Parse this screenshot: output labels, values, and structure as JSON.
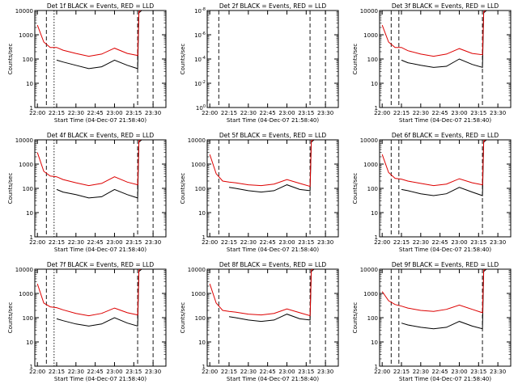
{
  "chart_data": [
    {
      "type": "line",
      "title": "Det 1f BLACK = Events, RED = LLD",
      "xlabel": "Start Time (04-Dec-07 21:58:40)",
      "ylabel": "Counts/sec",
      "x_ticks": [
        "22:00",
        "22:15",
        "22:30",
        "22:45",
        "23:00",
        "23:15",
        "23:30"
      ],
      "y_ticks": [
        "1",
        "10",
        "100",
        "1000",
        "10000"
      ],
      "y_scale": "log",
      "ylim": [
        1,
        10000
      ],
      "x": [
        "22:00",
        "22:05",
        "22:10",
        "22:15",
        "22:20",
        "22:30",
        "22:40",
        "22:50",
        "23:00",
        "23:10",
        "23:18",
        "23:19",
        "23:22",
        "23:35"
      ],
      "series": [
        {
          "name": "Events",
          "color": "#000000",
          "values": [
            null,
            null,
            null,
            90,
            75,
            55,
            40,
            48,
            90,
            55,
            40,
            8000,
            11000,
            11000
          ]
        },
        {
          "name": "LLD",
          "color": "#dd0000",
          "values": [
            2500,
            500,
            300,
            300,
            230,
            170,
            130,
            160,
            280,
            170,
            140,
            9000,
            12000,
            12000
          ]
        }
      ],
      "markers": [
        "22:07",
        "22:13",
        "23:18",
        "23:30"
      ]
    },
    {
      "type": "line",
      "title": "Det 2f BLACK = Events, RED = LLD",
      "xlabel": "Start Time (04-Dec-07 21:58:40)",
      "ylabel": "Counts/sec",
      "x_ticks": [
        "22:00",
        "22:15",
        "22:30",
        "22:45",
        "23:00",
        "23:15",
        "23:30"
      ],
      "y_ticks": [
        "10^0",
        "10^-2",
        "10^-4",
        "10^-6",
        "10^-8"
      ],
      "y_scale": "log",
      "ylim": [
        1e-08,
        1
      ],
      "x": [],
      "series": [],
      "markers": [
        "22:07",
        "23:18",
        "23:30"
      ]
    },
    {
      "type": "line",
      "title": "Det 3f BLACK = Events, RED = LLD",
      "xlabel": "Start Time (04-Dec-07 21:58:40)",
      "ylabel": "Counts/sec",
      "x_ticks": [
        "22:00",
        "22:15",
        "22:30",
        "22:45",
        "23:00",
        "23:15",
        "23:30"
      ],
      "y_ticks": [
        "1",
        "10",
        "100",
        "1000",
        "10000"
      ],
      "y_scale": "log",
      "ylim": [
        1,
        10000
      ],
      "x": [
        "22:00",
        "22:05",
        "22:10",
        "22:15",
        "22:20",
        "22:30",
        "22:40",
        "22:50",
        "23:00",
        "23:10",
        "23:18",
        "23:19",
        "23:22"
      ],
      "series": [
        {
          "name": "Events",
          "color": "#000000",
          "values": [
            null,
            null,
            null,
            90,
            70,
            55,
            45,
            50,
            100,
            60,
            45,
            8000,
            11000
          ]
        },
        {
          "name": "LLD",
          "color": "#dd0000",
          "values": [
            2500,
            500,
            300,
            300,
            220,
            160,
            130,
            160,
            270,
            170,
            150,
            9000,
            12000
          ]
        }
      ],
      "markers": [
        "22:07",
        "22:13",
        "23:18"
      ]
    },
    {
      "type": "line",
      "title": "Det 4f BLACK = Events, RED = LLD",
      "xlabel": "Start Time (04-Dec-07 21:58:40)",
      "ylabel": "Counts/sec",
      "x_ticks": [
        "22:00",
        "22:15",
        "22:30",
        "22:45",
        "23:00",
        "23:15",
        "23:30"
      ],
      "y_ticks": [
        "1",
        "10",
        "100",
        "1000",
        "10000"
      ],
      "y_scale": "log",
      "ylim": [
        1,
        10000
      ],
      "x": [
        "22:00",
        "22:05",
        "22:10",
        "22:15",
        "22:20",
        "22:30",
        "22:40",
        "22:50",
        "23:00",
        "23:10",
        "23:18",
        "23:19",
        "23:22",
        "23:35"
      ],
      "series": [
        {
          "name": "Events",
          "color": "#000000",
          "values": [
            null,
            null,
            null,
            90,
            70,
            55,
            40,
            45,
            90,
            55,
            40,
            8000,
            11000,
            11000
          ]
        },
        {
          "name": "LLD",
          "color": "#dd0000",
          "values": [
            3000,
            500,
            320,
            300,
            230,
            170,
            130,
            160,
            300,
            180,
            140,
            9000,
            12000,
            12000
          ]
        }
      ],
      "markers": [
        "22:07",
        "22:13",
        "23:18",
        "23:30"
      ]
    },
    {
      "type": "line",
      "title": "Det 5f BLACK = Events, RED = LLD",
      "xlabel": "Start Time (04-Dec-07 21:58:40)",
      "ylabel": "Counts/sec",
      "x_ticks": [
        "22:00",
        "22:15",
        "22:30",
        "22:45",
        "23:00",
        "23:15",
        "23:30"
      ],
      "y_ticks": [
        "1",
        "10",
        "100",
        "1000",
        "10000"
      ],
      "y_scale": "log",
      "ylim": [
        1,
        10000
      ],
      "x": [
        "22:00",
        "22:05",
        "22:10",
        "22:15",
        "22:20",
        "22:30",
        "22:40",
        "22:50",
        "23:00",
        "23:10",
        "23:18",
        "23:19",
        "23:22"
      ],
      "series": [
        {
          "name": "Events",
          "color": "#000000",
          "values": [
            null,
            null,
            null,
            110,
            100,
            80,
            70,
            80,
            140,
            90,
            80,
            8000,
            11000
          ]
        },
        {
          "name": "LLD",
          "color": "#dd0000",
          "values": [
            2500,
            400,
            200,
            180,
            170,
            140,
            130,
            150,
            230,
            160,
            120,
            9000,
            12000
          ]
        }
      ],
      "markers": [
        "22:07",
        "23:18",
        "23:30"
      ]
    },
    {
      "type": "line",
      "title": "Det 6f BLACK = Events, RED = LLD",
      "xlabel": "Start Time (04-Dec-07 21:58:40)",
      "ylabel": "Counts/sec",
      "x_ticks": [
        "22:00",
        "22:15",
        "22:30",
        "22:45",
        "23:00",
        "23:15",
        "23:30"
      ],
      "y_ticks": [
        "1",
        "10",
        "100",
        "1000",
        "10000"
      ],
      "y_scale": "log",
      "ylim": [
        1,
        10000
      ],
      "x": [
        "22:00",
        "22:05",
        "22:10",
        "22:15",
        "22:20",
        "22:30",
        "22:40",
        "22:50",
        "23:00",
        "23:10",
        "23:18",
        "23:19",
        "23:22"
      ],
      "series": [
        {
          "name": "Events",
          "color": "#000000",
          "values": [
            null,
            null,
            null,
            90,
            80,
            60,
            50,
            60,
            110,
            70,
            50,
            8000,
            11000
          ]
        },
        {
          "name": "LLD",
          "color": "#dd0000",
          "values": [
            2500,
            450,
            260,
            240,
            200,
            160,
            130,
            150,
            250,
            170,
            140,
            9000,
            12000
          ]
        }
      ],
      "markers": [
        "22:07",
        "22:13",
        "23:18"
      ]
    },
    {
      "type": "line",
      "title": "Det 7f BLACK = Events, RED = LLD",
      "xlabel": "Start Time (04-Dec-07 21:58:40)",
      "ylabel": "Counts/sec",
      "x_ticks": [
        "22:00",
        "22:15",
        "22:30",
        "22:45",
        "23:00",
        "23:15",
        "23:30"
      ],
      "y_ticks": [
        "1",
        "10",
        "100",
        "1000",
        "10000"
      ],
      "y_scale": "log",
      "ylim": [
        1,
        10000
      ],
      "x": [
        "22:00",
        "22:05",
        "22:10",
        "22:15",
        "22:20",
        "22:30",
        "22:40",
        "22:50",
        "23:00",
        "23:10",
        "23:18",
        "23:19",
        "23:22"
      ],
      "series": [
        {
          "name": "Events",
          "color": "#000000",
          "values": [
            null,
            null,
            null,
            90,
            75,
            55,
            45,
            55,
            100,
            60,
            45,
            8000,
            11000
          ]
        },
        {
          "name": "LLD",
          "color": "#dd0000",
          "values": [
            2500,
            400,
            280,
            260,
            210,
            150,
            120,
            150,
            250,
            160,
            130,
            9000,
            12000
          ]
        }
      ],
      "markers": [
        "22:07",
        "22:13",
        "23:18",
        "23:30"
      ]
    },
    {
      "type": "line",
      "title": "Det 8f BLACK = Events, RED = LLD",
      "xlabel": "Start Time (04-Dec-07 21:58:40)",
      "ylabel": "Counts/sec",
      "x_ticks": [
        "22:00",
        "22:15",
        "22:30",
        "22:45",
        "23:00",
        "23:15",
        "23:30"
      ],
      "y_ticks": [
        "1",
        "10",
        "100",
        "1000",
        "10000"
      ],
      "y_scale": "log",
      "ylim": [
        1,
        10000
      ],
      "x": [
        "22:00",
        "22:05",
        "22:10",
        "22:15",
        "22:20",
        "22:30",
        "22:40",
        "22:50",
        "23:00",
        "23:10",
        "23:18",
        "23:19",
        "23:22"
      ],
      "series": [
        {
          "name": "Events",
          "color": "#000000",
          "values": [
            null,
            null,
            null,
            110,
            100,
            80,
            70,
            80,
            140,
            90,
            80,
            8000,
            11000
          ]
        },
        {
          "name": "LLD",
          "color": "#dd0000",
          "values": [
            2500,
            400,
            200,
            180,
            170,
            140,
            130,
            150,
            230,
            160,
            120,
            9000,
            12000
          ]
        }
      ],
      "markers": [
        "22:07",
        "23:18",
        "23:30"
      ]
    },
    {
      "type": "line",
      "title": "Det 9f BLACK = Events, RED = LLD",
      "xlabel": "Start Time (04-Dec-07 21:58:40)",
      "ylabel": "Counts/sec",
      "x_ticks": [
        "22:00",
        "22:15",
        "22:30",
        "22:45",
        "23:00",
        "23:15",
        "23:30"
      ],
      "y_ticks": [
        "1",
        "10",
        "100",
        "1000",
        "10000"
      ],
      "y_scale": "log",
      "ylim": [
        1,
        10000
      ],
      "x": [
        "22:00",
        "22:05",
        "22:10",
        "22:15",
        "22:20",
        "22:30",
        "22:40",
        "22:50",
        "23:00",
        "23:10",
        "23:18",
        "23:19",
        "23:22"
      ],
      "series": [
        {
          "name": "Events",
          "color": "#000000",
          "values": [
            null,
            null,
            null,
            60,
            50,
            40,
            35,
            40,
            70,
            45,
            35,
            8000,
            11000
          ]
        },
        {
          "name": "LLD",
          "color": "#dd0000",
          "values": [
            1200,
            500,
            350,
            300,
            250,
            200,
            180,
            220,
            330,
            220,
            160,
            9000,
            12000
          ]
        }
      ],
      "markers": [
        "22:07",
        "22:13",
        "23:18"
      ]
    }
  ]
}
